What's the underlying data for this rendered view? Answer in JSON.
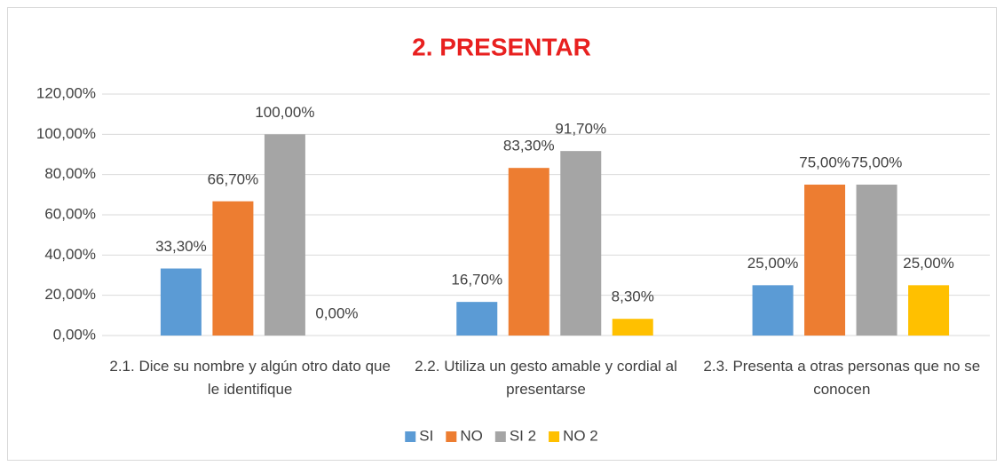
{
  "chart_data": {
    "type": "bar",
    "title": "2. PRESENTAR",
    "categories": [
      "2.1. Dice su nombre y algún otro dato que le identifique",
      "2.2. Utiliza un gesto amable y cordial al presentarse",
      "2.3. Presenta a otras personas que no se conocen"
    ],
    "series": [
      {
        "name": "SI",
        "color": "#5b9bd5",
        "values": [
          33.3,
          16.7,
          25
        ],
        "value_labels": [
          "33,30%",
          "16,70%",
          "25,00%"
        ]
      },
      {
        "name": "NO",
        "color": "#ed7d31",
        "values": [
          66.7,
          83.3,
          75
        ],
        "value_labels": [
          "66,70%",
          "83,30%",
          "75,00%"
        ]
      },
      {
        "name": "SI 2",
        "color": "#a5a5a5",
        "values": [
          100,
          91.7,
          75
        ],
        "value_labels": [
          "100,00%",
          "91,70%",
          "75,00%"
        ]
      },
      {
        "name": "NO 2",
        "color": "#ffc000",
        "values": [
          0,
          8.3,
          25
        ],
        "value_labels": [
          "0,00%",
          "8,30%",
          "25,00%"
        ]
      }
    ],
    "ylim": [
      0,
      120
    ],
    "yticks": [
      {
        "value": 0,
        "label": "0,00%"
      },
      {
        "value": 20,
        "label": "20,00%"
      },
      {
        "value": 40,
        "label": "40,00%"
      },
      {
        "value": 60,
        "label": "60,00%"
      },
      {
        "value": 80,
        "label": "80,00%"
      },
      {
        "value": 100,
        "label": "100,00%"
      },
      {
        "value": 120,
        "label": "120,00%"
      }
    ],
    "grid": true,
    "legend": "bottom"
  }
}
